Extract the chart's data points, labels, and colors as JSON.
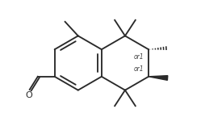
{
  "bg_color": "#ffffff",
  "line_color": "#2a2a2a",
  "line_width": 1.35,
  "text_color": "#2a2a2a",
  "font_size_or1": 5.5,
  "or1_color": "#444444",
  "xlim": [
    -2.8,
    4.6
  ],
  "ylim": [
    -2.3,
    2.3
  ],
  "scale": 1.0,
  "ox": 0.0,
  "oy": 0.0
}
